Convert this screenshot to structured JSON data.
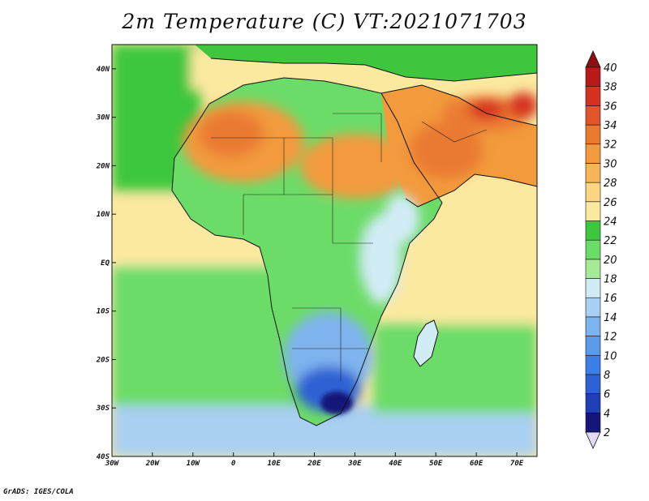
{
  "title": "2m Temperature (C) VT:2021071703",
  "credit": "GrADS: IGES/COLA",
  "map": {
    "lon_range": [
      -30,
      75
    ],
    "lat_range": [
      -40,
      45
    ],
    "lon_ticks": [
      {
        "value": -30,
        "label": "30W"
      },
      {
        "value": -20,
        "label": "20W"
      },
      {
        "value": -10,
        "label": "10W"
      },
      {
        "value": 0,
        "label": "0"
      },
      {
        "value": 10,
        "label": "10E"
      },
      {
        "value": 20,
        "label": "20E"
      },
      {
        "value": 30,
        "label": "30E"
      },
      {
        "value": 40,
        "label": "40E"
      },
      {
        "value": 50,
        "label": "50E"
      },
      {
        "value": 60,
        "label": "60E"
      },
      {
        "value": 70,
        "label": "70E"
      }
    ],
    "lat_ticks": [
      {
        "value": 40,
        "label": "40N"
      },
      {
        "value": 30,
        "label": "30N"
      },
      {
        "value": 20,
        "label": "20N"
      },
      {
        "value": 10,
        "label": "10N"
      },
      {
        "value": 0,
        "label": "EQ"
      },
      {
        "value": -10,
        "label": "10S"
      },
      {
        "value": -20,
        "label": "20S"
      },
      {
        "value": -30,
        "label": "30S"
      },
      {
        "value": -40,
        "label": "40S"
      }
    ],
    "regions": [
      {
        "name": "sahara",
        "temp": 30
      },
      {
        "name": "arabia",
        "temp": 31
      },
      {
        "name": "iran",
        "temp": 32
      },
      {
        "name": "gulf-hotspot",
        "temp": 36
      },
      {
        "name": "mediterranean",
        "temp": 25
      },
      {
        "name": "atlantic-north",
        "temp": 23
      },
      {
        "name": "atlantic-tropical",
        "temp": 25
      },
      {
        "name": "atlantic-south",
        "temp": 21
      },
      {
        "name": "southern-ocean",
        "temp": 15
      },
      {
        "name": "indian-ocean",
        "temp": 25
      },
      {
        "name": "indian-ocean-south",
        "temp": 21
      },
      {
        "name": "congo",
        "temp": 21
      },
      {
        "name": "east-african-highlands",
        "temp": 17
      },
      {
        "name": "southern-africa",
        "temp": 13
      },
      {
        "name": "south-africa-interior",
        "temp": 7
      },
      {
        "name": "lesotho",
        "temp": 3
      },
      {
        "name": "madagascar",
        "temp": 17
      }
    ]
  },
  "colorbar": {
    "levels": [
      2,
      4,
      6,
      8,
      10,
      12,
      14,
      16,
      18,
      20,
      22,
      24,
      26,
      28,
      30,
      32,
      34,
      36,
      38,
      40
    ],
    "labels": [
      "2",
      "4",
      "6",
      "8",
      "10",
      "12",
      "14",
      "16",
      "18",
      "20",
      "22",
      "24",
      "26",
      "28",
      "30",
      "32",
      "34",
      "36",
      "38",
      "40"
    ],
    "colors": [
      "#16167a",
      "#1f3fb5",
      "#2e62d4",
      "#3a80e6",
      "#5a9ae8",
      "#7fb3ee",
      "#a9cff2",
      "#d2ecf6",
      "#a6ea98",
      "#6cdc68",
      "#3ec73e",
      "#fbe9a0",
      "#fcd580",
      "#f8b45a",
      "#f29a3c",
      "#ea7a30",
      "#e2542a",
      "#d63224",
      "#b81a1a",
      "#8e0f12"
    ],
    "below_color": "#e2d9f5"
  }
}
